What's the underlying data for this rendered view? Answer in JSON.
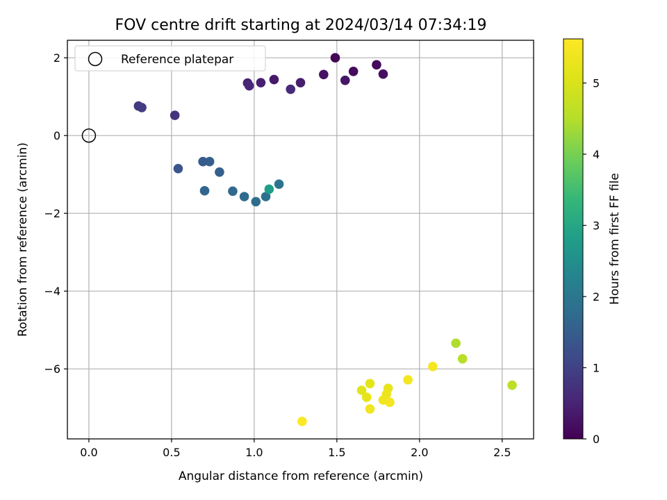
{
  "chart_data": {
    "type": "scatter",
    "title": "FOV centre drift starting at 2024/03/14 07:34:19",
    "xlabel": "Angular distance from reference (arcmin)",
    "ylabel": "Rotation from reference (arcmin)",
    "xlim": [
      -0.13,
      2.69
    ],
    "ylim": [
      -7.8,
      2.45
    ],
    "xticks": [
      0.0,
      0.5,
      1.0,
      1.5,
      2.0,
      2.5
    ],
    "xtick_labels": [
      "0.0",
      "0.5",
      "1.0",
      "1.5",
      "2.0",
      "2.5"
    ],
    "yticks": [
      2,
      0,
      -2,
      -4,
      -6
    ],
    "ytick_labels": [
      "2",
      "0",
      "−2",
      "−4",
      "−6"
    ],
    "grid": true,
    "legend": {
      "position": "top-left",
      "entries": [
        {
          "label": "Reference platepar",
          "marker": "open-circle",
          "x": 0.0,
          "y": 0.0
        }
      ]
    },
    "colorbar": {
      "label": "Hours from first FF file",
      "colormap": "viridis",
      "range": [
        0,
        5.62
      ],
      "ticks": [
        0,
        1,
        2,
        3,
        4,
        5
      ],
      "tick_labels": [
        "0",
        "1",
        "2",
        "3",
        "4",
        "5"
      ]
    },
    "series": [
      {
        "points": [
          {
            "x": 1.49,
            "y": 2.0,
            "c": 0.05
          },
          {
            "x": 1.74,
            "y": 1.82,
            "c": 0.1
          },
          {
            "x": 1.6,
            "y": 1.65,
            "c": 0.15
          },
          {
            "x": 1.78,
            "y": 1.58,
            "c": 0.2
          },
          {
            "x": 1.42,
            "y": 1.57,
            "c": 0.25
          },
          {
            "x": 1.55,
            "y": 1.42,
            "c": 0.3
          },
          {
            "x": 1.12,
            "y": 1.44,
            "c": 0.35
          },
          {
            "x": 1.28,
            "y": 1.36,
            "c": 0.4
          },
          {
            "x": 1.04,
            "y": 1.36,
            "c": 0.45
          },
          {
            "x": 0.96,
            "y": 1.35,
            "c": 0.5
          },
          {
            "x": 0.97,
            "y": 1.28,
            "c": 0.55
          },
          {
            "x": 1.22,
            "y": 1.19,
            "c": 0.6
          },
          {
            "x": 0.52,
            "y": 0.52,
            "c": 0.75
          },
          {
            "x": 0.3,
            "y": 0.76,
            "c": 0.85
          },
          {
            "x": 0.32,
            "y": 0.72,
            "c": 0.9
          },
          {
            "x": 0.54,
            "y": -0.85,
            "c": 1.35
          },
          {
            "x": 0.69,
            "y": -0.67,
            "c": 1.45
          },
          {
            "x": 0.73,
            "y": -0.67,
            "c": 1.5
          },
          {
            "x": 0.79,
            "y": -0.94,
            "c": 1.55
          },
          {
            "x": 0.7,
            "y": -1.42,
            "c": 1.65
          },
          {
            "x": 0.87,
            "y": -1.43,
            "c": 1.7
          },
          {
            "x": 0.94,
            "y": -1.57,
            "c": 1.75
          },
          {
            "x": 1.01,
            "y": -1.7,
            "c": 1.8
          },
          {
            "x": 1.07,
            "y": -1.57,
            "c": 1.85
          },
          {
            "x": 1.15,
            "y": -1.25,
            "c": 1.95
          },
          {
            "x": 1.09,
            "y": -1.38,
            "c": 2.8
          },
          {
            "x": 2.22,
            "y": -5.34,
            "c": 4.45
          },
          {
            "x": 2.26,
            "y": -5.74,
            "c": 4.55
          },
          {
            "x": 2.56,
            "y": -6.42,
            "c": 4.6
          },
          {
            "x": 1.65,
            "y": -6.55,
            "c": 5.15
          },
          {
            "x": 1.7,
            "y": -6.38,
            "c": 5.2
          },
          {
            "x": 1.68,
            "y": -6.73,
            "c": 5.25
          },
          {
            "x": 1.81,
            "y": -6.5,
            "c": 5.25
          },
          {
            "x": 1.8,
            "y": -6.65,
            "c": 5.3
          },
          {
            "x": 1.78,
            "y": -6.8,
            "c": 5.35
          },
          {
            "x": 1.7,
            "y": -7.03,
            "c": 5.4
          },
          {
            "x": 1.82,
            "y": -6.86,
            "c": 5.45
          },
          {
            "x": 1.93,
            "y": -6.28,
            "c": 5.45
          },
          {
            "x": 2.08,
            "y": -5.94,
            "c": 5.5
          },
          {
            "x": 1.29,
            "y": -7.35,
            "c": 5.6
          }
        ]
      }
    ]
  }
}
